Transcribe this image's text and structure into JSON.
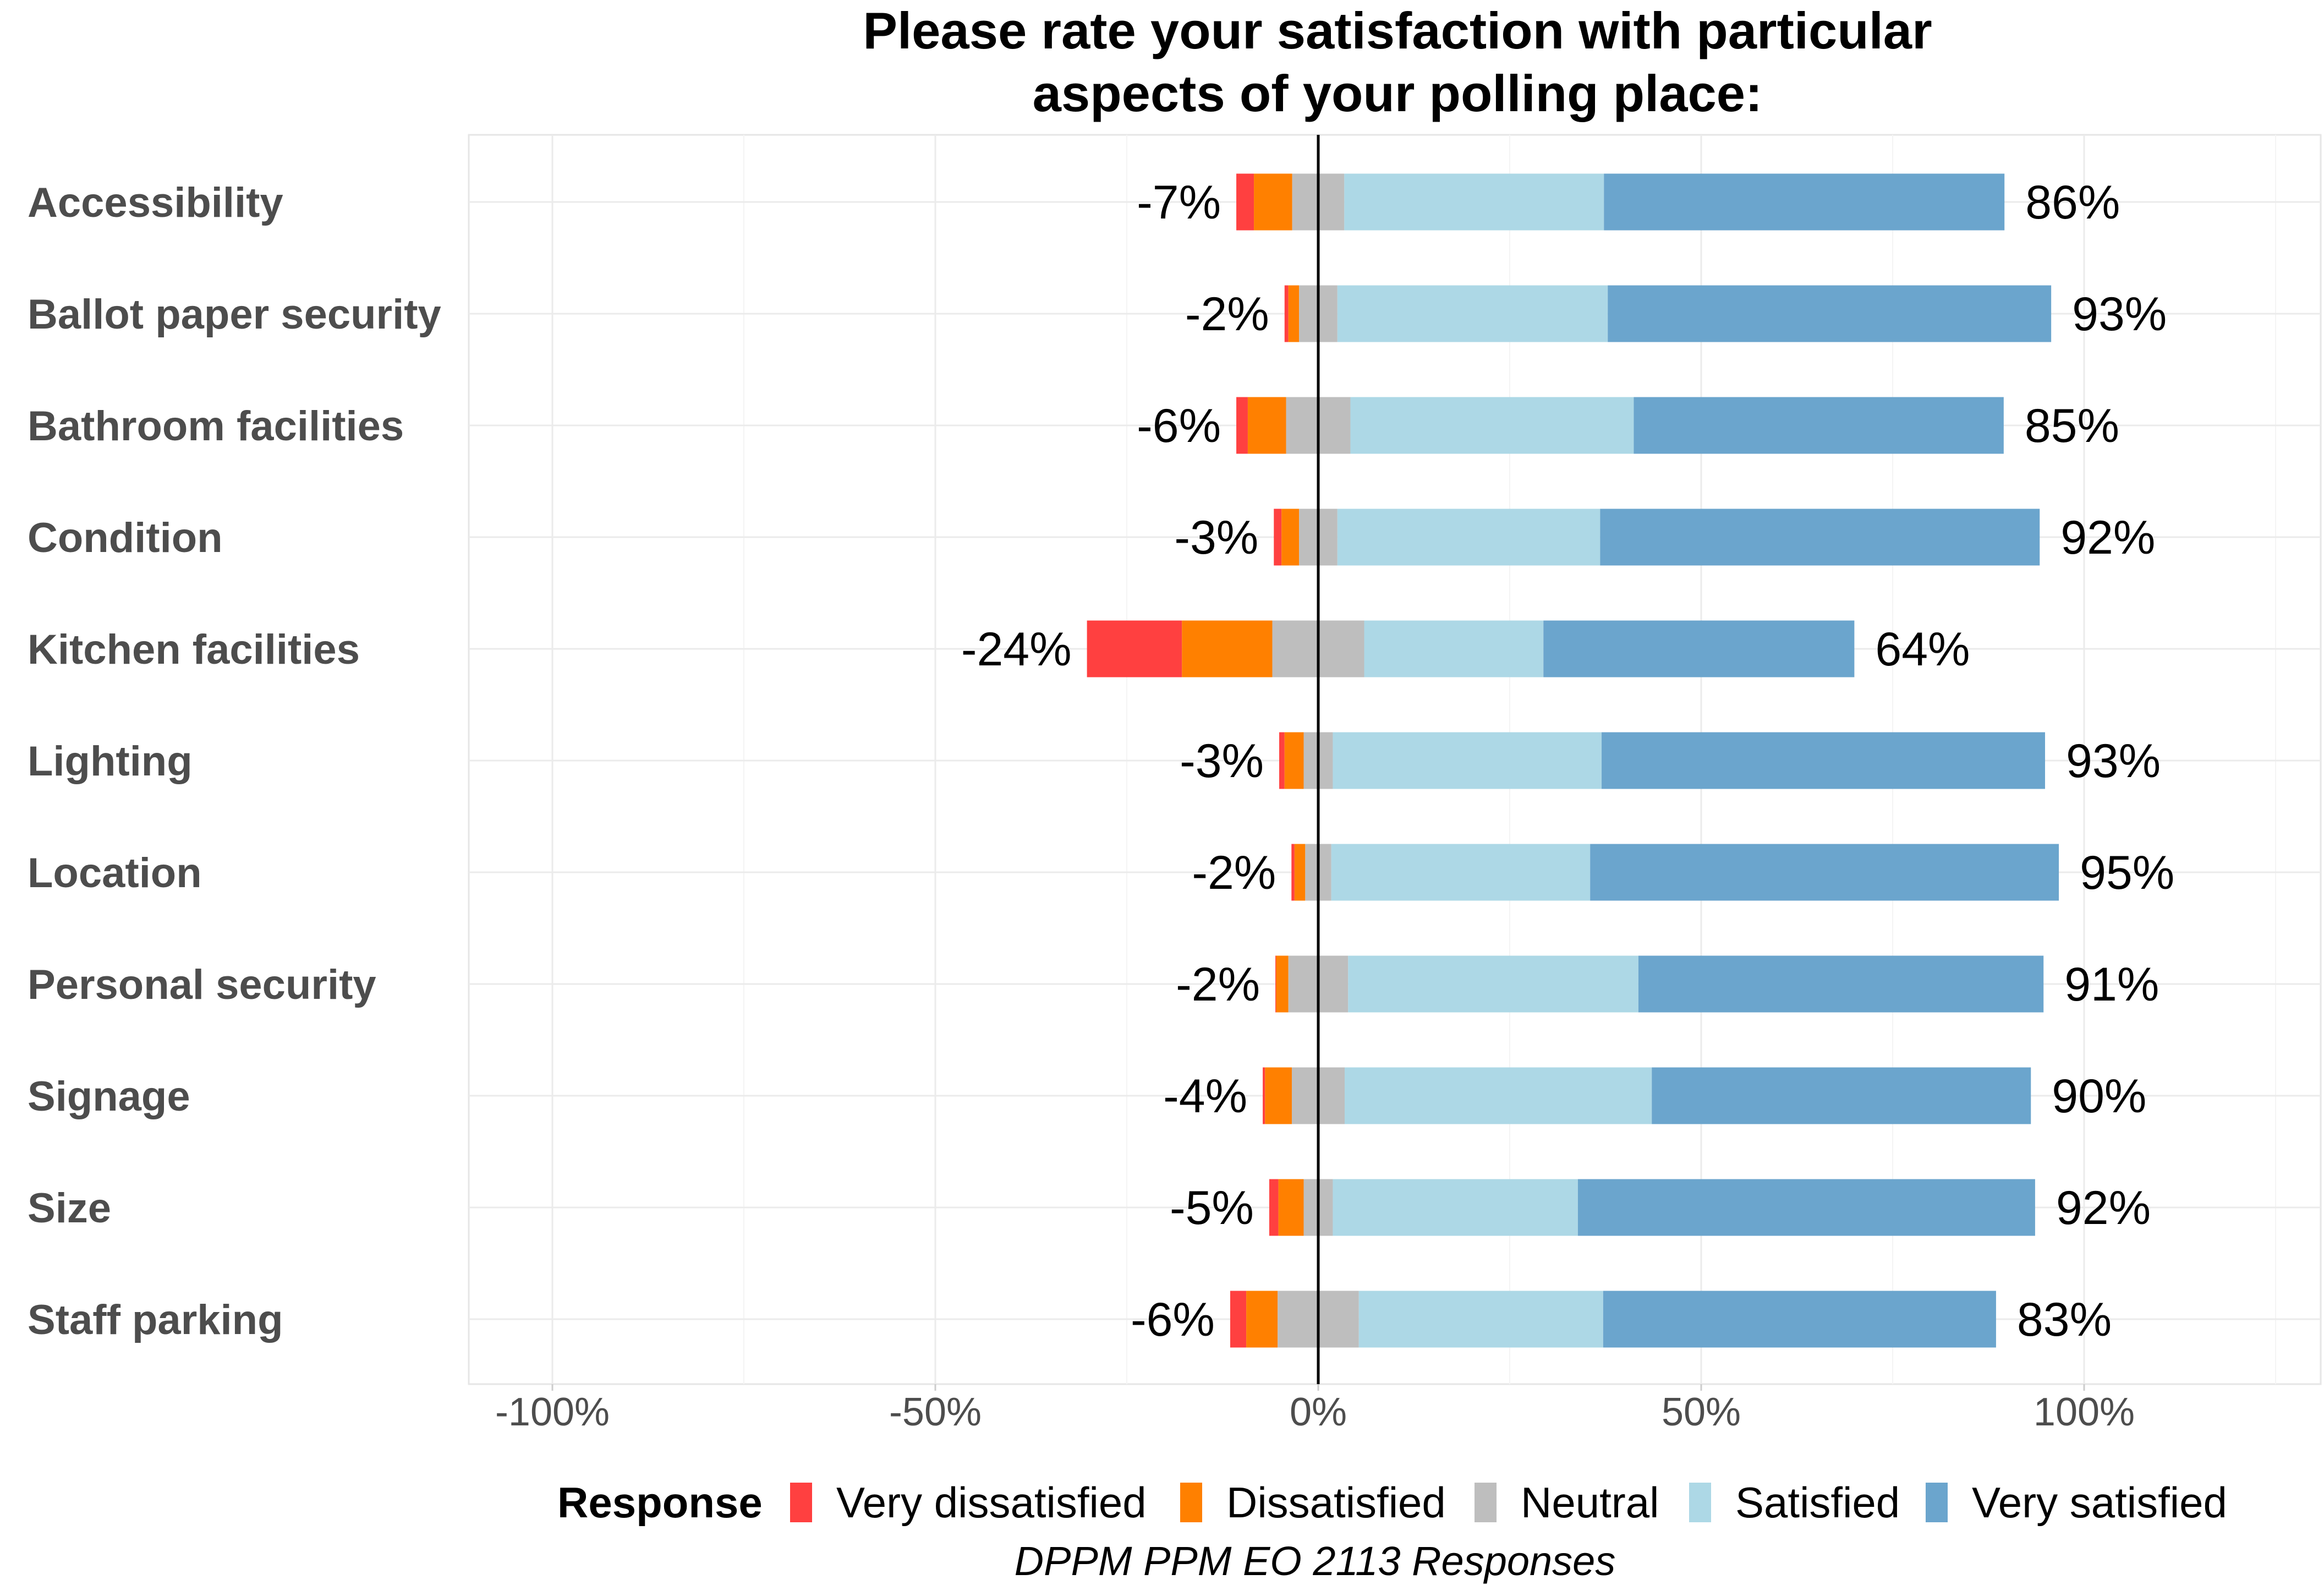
{
  "chart_data": {
    "type": "bar",
    "orientation": "horizontal-diverging-stacked",
    "title": "Please rate your satisfaction with particular aspects of your polling place:",
    "title_lines": [
      "Please rate your satisfaction with particular",
      "aspects of your polling place:"
    ],
    "caption": "DPPM PPM EO 2113 Responses",
    "legend": {
      "title": "Response",
      "position": "bottom",
      "items": [
        "Very dissatisfied",
        "Dissatisfied",
        "Neutral",
        "Satisfied",
        "Very satisfied"
      ]
    },
    "xlim": [
      -110,
      131
    ],
    "x_ticks": [
      -100,
      -50,
      0,
      50,
      100
    ],
    "x_tick_labels": [
      "-100%",
      "-50%",
      "0%",
      "50%",
      "100%"
    ],
    "grid": true,
    "colors": {
      "very_dissatisfied": "#ff4040",
      "dissatisfied": "#ff8000",
      "neutral": "#bebebe",
      "satisfied": "#add8e6",
      "very_satisfied": "#6ba5cd"
    },
    "categories": [
      "Accessibility",
      "Ballot paper security",
      "Bathroom facilities",
      "Condition",
      "Kitchen facilities",
      "Lighting",
      "Location",
      "Personal security",
      "Signage",
      "Size",
      "Staff parking"
    ],
    "series": [
      {
        "name": "Very dissatisfied",
        "values": [
          2.3,
          0.5,
          1.5,
          1.0,
          12.4,
          0.7,
          0.4,
          0.1,
          0.3,
          1.2,
          2.1
        ]
      },
      {
        "name": "Dissatisfied",
        "values": [
          5.0,
          1.4,
          5.0,
          2.3,
          11.8,
          2.5,
          1.4,
          1.6,
          3.5,
          3.3,
          4.1
        ]
      },
      {
        "name": "Neutral",
        "values": [
          6.8,
          5.0,
          8.4,
          5.0,
          12.0,
          3.8,
          3.4,
          7.8,
          6.9,
          3.8,
          10.6
        ]
      },
      {
        "name": "Satisfied",
        "values": [
          33.9,
          35.3,
          37.0,
          34.3,
          23.4,
          35.1,
          33.8,
          37.9,
          40.1,
          32.0,
          31.9
        ]
      },
      {
        "name": "Very satisfied",
        "values": [
          52.3,
          57.9,
          48.3,
          57.4,
          40.6,
          57.9,
          61.2,
          52.9,
          49.5,
          59.7,
          51.3
        ]
      }
    ],
    "negative_labels": [
      "-7%",
      "-2%",
      "-6%",
      "-3%",
      "-24%",
      "-3%",
      "-2%",
      "-2%",
      "-4%",
      "-5%",
      "-6%"
    ],
    "positive_labels": [
      "86%",
      "93%",
      "85%",
      "92%",
      "64%",
      "93%",
      "95%",
      "91%",
      "90%",
      "92%",
      "83%"
    ]
  }
}
